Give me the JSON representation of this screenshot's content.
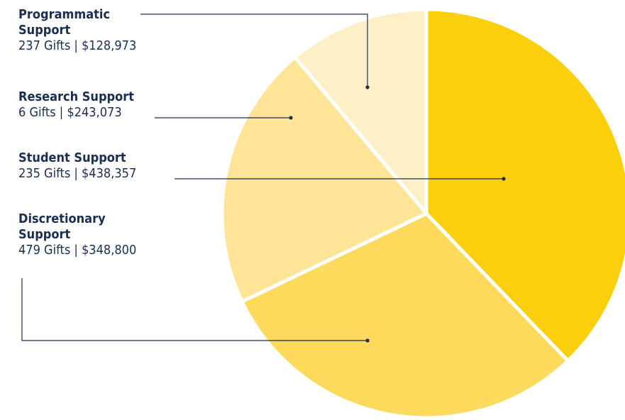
{
  "chart_data": {
    "type": "pie",
    "title": "",
    "slices": [
      {
        "label": "Student Support",
        "gifts": 235,
        "gift_count_text": "235 Gifts",
        "amount": 438357,
        "amount_text": "$438,357",
        "color": "#fccf0d"
      },
      {
        "label": "Discretionary Support",
        "gifts": 479,
        "gift_count_text": "479 Gifts",
        "amount": 348800,
        "amount_text": "$348,800",
        "color": "#fdd95c"
      },
      {
        "label": "Research Support",
        "gifts": 6,
        "gift_count_text": "6 Gifts",
        "amount": 243073,
        "amount_text": "$243,073",
        "color": "#fde496"
      },
      {
        "label": "Programmatic Support",
        "gifts": 237,
        "gift_count_text": "237 Gifts",
        "amount": 128973,
        "amount_text": "$128,973",
        "color": "#fef0c6"
      }
    ]
  },
  "legend": {
    "programmatic": {
      "name": "Programmatic\nSupport",
      "detail": "237 Gifts | $128,973"
    },
    "research": {
      "name": "Research Support",
      "detail": "6 Gifts | $243,073"
    },
    "student": {
      "name": "Student Support",
      "detail": "235 Gifts | $438,357"
    },
    "discretionary": {
      "name": "Discretionary\nSupport",
      "detail": "479 Gifts | $348,800"
    }
  },
  "colors": {
    "text": "#1b2e52",
    "slice_separator": "#ffffff"
  }
}
